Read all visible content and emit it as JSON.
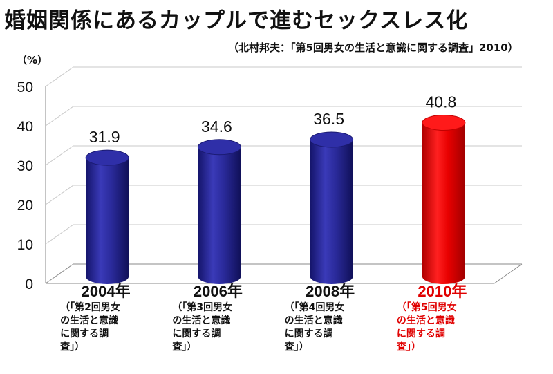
{
  "title": "婚姻関係にあるカップルで進むセックスレス化",
  "subtitle": "（北村邦夫：「第5回男女の生活と意識に関する調査」2010）",
  "chart_data": {
    "type": "bar",
    "y_unit_label": "（%）",
    "ylim": [
      0,
      50
    ],
    "yticks": [
      "0",
      "10",
      "20",
      "30",
      "40",
      "50"
    ],
    "categories": [
      {
        "year": "2004年",
        "survey": "（「第2回男女\nの生活と意識\nに関する調\n査」）"
      },
      {
        "year": "2006年",
        "survey": "（「第3回男女\nの生活と意識\nに関する調\n査」）"
      },
      {
        "year": "2008年",
        "survey": "（「第4回男女\nの生活と意識\nに関する調\n査」）"
      },
      {
        "year": "2010年",
        "survey": "（「第5回男女\nの生活と意識\nに関する調\n査」）"
      }
    ],
    "values": [
      31.9,
      34.6,
      36.5,
      40.8
    ],
    "value_labels": [
      "31.9",
      "34.6",
      "36.5",
      "40.8"
    ],
    "bar_color": "#2a2a9a",
    "highlight_color": "#e00000",
    "highlight_index": 3,
    "grid": true
  }
}
